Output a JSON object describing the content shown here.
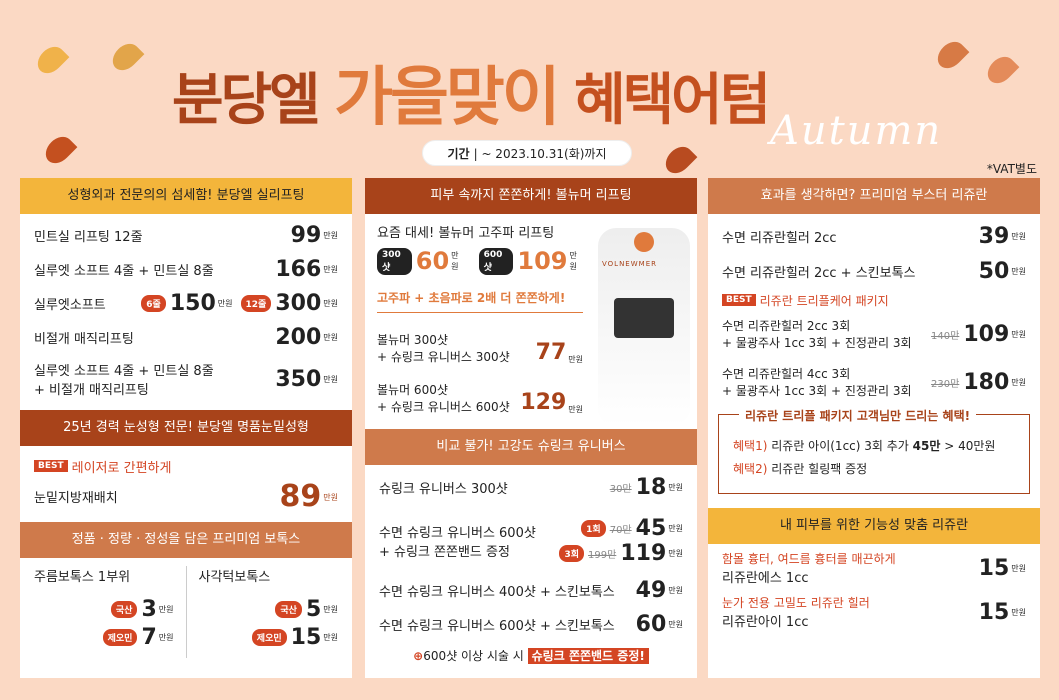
{
  "header": {
    "title_a": "분당엘",
    "title_b": "가을맞이",
    "title_c": "혜택어텀",
    "script_text": "Autumn",
    "period_label": "기간",
    "period_value": "~ 2023.10.31(화)까지",
    "vat": "*VAT별도"
  },
  "colors": {
    "brown": "#a8431a",
    "orange": "#e07a3c",
    "yellow": "#f3b53b",
    "bg": "#fbd9c4"
  },
  "col1": {
    "bar1": "성형외과 전문의의 섬세함! 분당엘 실리프팅",
    "items": [
      {
        "name": "민트실 리프팅 12줄",
        "price": "99",
        "unit": "만원"
      },
      {
        "name": "실루엣 소프트 4줄 + 민트실 8줄",
        "price": "166",
        "unit": "만원"
      },
      {
        "name": "실루엣소프트",
        "pill1": "6줄",
        "price1": "150",
        "pill2": "12줄",
        "price": "300",
        "unit": "만원"
      },
      {
        "name": "비절개 매직리프팅",
        "price": "200",
        "unit": "만원"
      },
      {
        "name": "실루엣 소프트 4줄 + 민트실 8줄",
        "name2": "+ 비절개 매직리프팅",
        "price": "350",
        "unit": "만원"
      }
    ],
    "bar2": "25년 경력 눈성형 전문! 분당엘 명품눈밑성형",
    "best": "BEST",
    "best_text": "레이저로 간편하게",
    "eye_name": "눈밑지방재배치",
    "eye_price": "89",
    "unit": "만원",
    "bar3": "정품 · 정량 · 정성을 담은 프리미엄 보톡스",
    "botox_left": "주름보톡스 1부위",
    "botox_right": "사각턱보톡스",
    "kor": "국산",
    "imp": "제오민",
    "b_l1": "3",
    "b_l2": "7",
    "b_r1": "5",
    "b_r2": "15"
  },
  "col2": {
    "bar1": "피부 속까지 쫀쫀하게! 볼뉴머 리프팅",
    "intro": "요즘 대세! 볼뉴머 고주파 리프팅",
    "s300": "300샷",
    "p300": "60",
    "s600": "600샷",
    "p600": "109",
    "unit": "만원",
    "combo_title": "고주파 + 초음파로 2배 더 쫀쫀하게!",
    "c1a": "볼뉴머 300샷",
    "c1b": "+ 슈링크 유니버스 300샷",
    "c1p": "77",
    "c2a": "볼뉴머 600샷",
    "c2b": "+ 슈링크 유니버스 600샷",
    "c2p": "129",
    "brand": "VOLNEWMER",
    "bar2": "비교 불가! 고강도 슈링크 유니버스",
    "u1": "슈링크 유니버스 300샷",
    "u1s": "30만",
    "u1p": "18",
    "u2a": "수면 슈링크 유니버스 600샷",
    "u2b": "+ 슈링크 쫀쫀밴드 증정",
    "u2t1": "1회",
    "u2s1": "70만",
    "u2p1": "45",
    "u2t2": "3회",
    "u2s2": "199만",
    "u2p2": "119",
    "u3": "수면 슈링크 유니버스 400샷 + 스킨보톡스",
    "u3p": "49",
    "u4": "수면 슈링크 유니버스 600샷 + 스킨보톡스",
    "u4p": "60",
    "footer_a": "600샷 이상 시술 시",
    "footer_b": "슈링크 쫀쫀밴드 증정!"
  },
  "col3": {
    "bar1": "효과를 생각하면? 프리미엄 부스터 리쥬란",
    "r1": "수면 리쥬란힐러 2cc",
    "r1p": "39",
    "r2": "수면 리쥬란힐러 2cc + 스킨보톡스",
    "r2p": "50",
    "best": "BEST",
    "best_text": "리쥬란 트리플케어 패키지",
    "k1a": "수면  리쥬란힐러 2cc 3회",
    "k1b": "+ 물광주사 1cc 3회 + 진정관리 3회",
    "k1s": "140만",
    "k1p": "109",
    "k2a": "수면  리쥬란힐러 4cc 3회",
    "k2b": "+ 물광주사 1cc 3회 + 진정관리 3회",
    "k2s": "230만",
    "k2p": "180",
    "gift_title": "리쥬란 트리플 패키지 고객님만 드리는 혜택!",
    "g1_label": "혜택1)",
    "g1": "리쥬란 아이(1cc) 3회 추가",
    "g1_price": "45만",
    "g1_after": "> 40만원",
    "g2_label": "혜택2)",
    "g2": "리쥬란 힐링팩 증정",
    "bar2": "내 피부를 위한 기능성 맞춤 리쥬란",
    "e1_sub": "함몰 흉터, 여드름 흉터를 매끈하게",
    "e1": "리쥬란에스 1cc",
    "e1p": "15",
    "e2_sub": "눈가 전용 고밀도 리쥬란 힐러",
    "e2": "리쥬란아이 1cc",
    "e2p": "15",
    "unit": "만원"
  }
}
